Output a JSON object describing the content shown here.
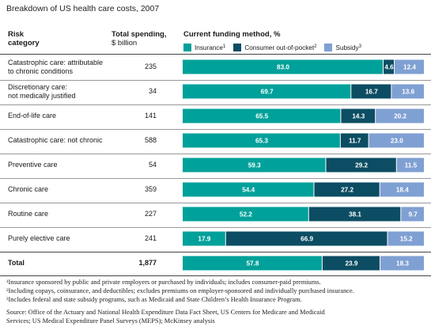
{
  "title": "Breakdown of US health care costs, 2007",
  "headers": {
    "risk_line1": "Risk",
    "risk_line2": "category",
    "spend_line1": "Total spending,",
    "spend_line2": "$ billion",
    "funding": "Current funding method, %"
  },
  "legend": [
    {
      "label": "Insurance",
      "sup": "1",
      "color": "#00a19a"
    },
    {
      "label": "Consumer out-of-pocket",
      "sup": "2",
      "color": "#0c4d63"
    },
    {
      "label": "Subsidy",
      "sup": "3",
      "color": "#7fa0d3"
    }
  ],
  "chart_data": {
    "type": "bar",
    "stacked": true,
    "orientation": "horizontal",
    "categories": [
      "Catastrophic care: attributable to chronic conditions",
      "Discretionary care: not medically justified",
      "End-of-life care",
      "Catastrophic care: not chronic",
      "Preventive care",
      "Chronic care",
      "Routine care",
      "Purely elective care",
      "Total"
    ],
    "category_lines": [
      [
        "Catastrophic care: attributable",
        "to chronic conditions"
      ],
      [
        "Discretionary care:",
        "not medically justified"
      ],
      [
        "End-of-life care"
      ],
      [
        "Catastrophic care: not chronic"
      ],
      [
        "Preventive care"
      ],
      [
        "Chronic care"
      ],
      [
        "Routine care"
      ],
      [
        "Purely elective care"
      ],
      [
        "Total"
      ]
    ],
    "total_spending": [
      "235",
      "34",
      "141",
      "588",
      "54",
      "359",
      "227",
      "241",
      "1,877"
    ],
    "series": [
      {
        "name": "Insurance",
        "values": [
          83.0,
          69.7,
          65.5,
          65.3,
          59.3,
          54.4,
          52.2,
          17.9,
          57.8
        ],
        "labels": [
          "83.0",
          "69.7",
          "65.5",
          "65.3",
          "59.3",
          "54.4",
          "52.2",
          "17.9",
          "57.8"
        ]
      },
      {
        "name": "Consumer out-of-pocket",
        "values": [
          4.6,
          16.7,
          14.3,
          11.7,
          29.2,
          27.2,
          38.1,
          66.9,
          23.9
        ],
        "labels": [
          "4.6",
          "16.7",
          "14.3",
          "11.7",
          "29.2",
          "27.2",
          "38.1",
          "66.9",
          "23.9"
        ]
      },
      {
        "name": "Subsidy",
        "values": [
          12.4,
          13.6,
          20.2,
          23.0,
          11.5,
          18.4,
          9.7,
          15.2,
          18.3
        ],
        "labels": [
          "12.4",
          "13.6",
          "20.2",
          "23.0",
          "11.5",
          "18.4",
          "9.7",
          "15.2",
          "18.3"
        ]
      }
    ],
    "xlim": [
      0,
      100
    ]
  },
  "footnotes": [
    "¹Insurance sponsored by public and private employers or purchased by individuals; includes consumer-paid premiums.",
    "²Including copays, coinsurance, and deductibles; excludes premiums on employer-sponsored and individually purchased insurance.",
    "³Includes federal and state subsidy programs, such as Medicaid and State Children’s Health Insurance Program."
  ],
  "source": [
    "Source: Office of the Actuary and National Health Expenditure Data Fact Sheet, US Centers for Medicare and Medicaid",
    "Services; US Medical Expenditure Panel Surveys (MEPS); McKinsey analysis"
  ]
}
